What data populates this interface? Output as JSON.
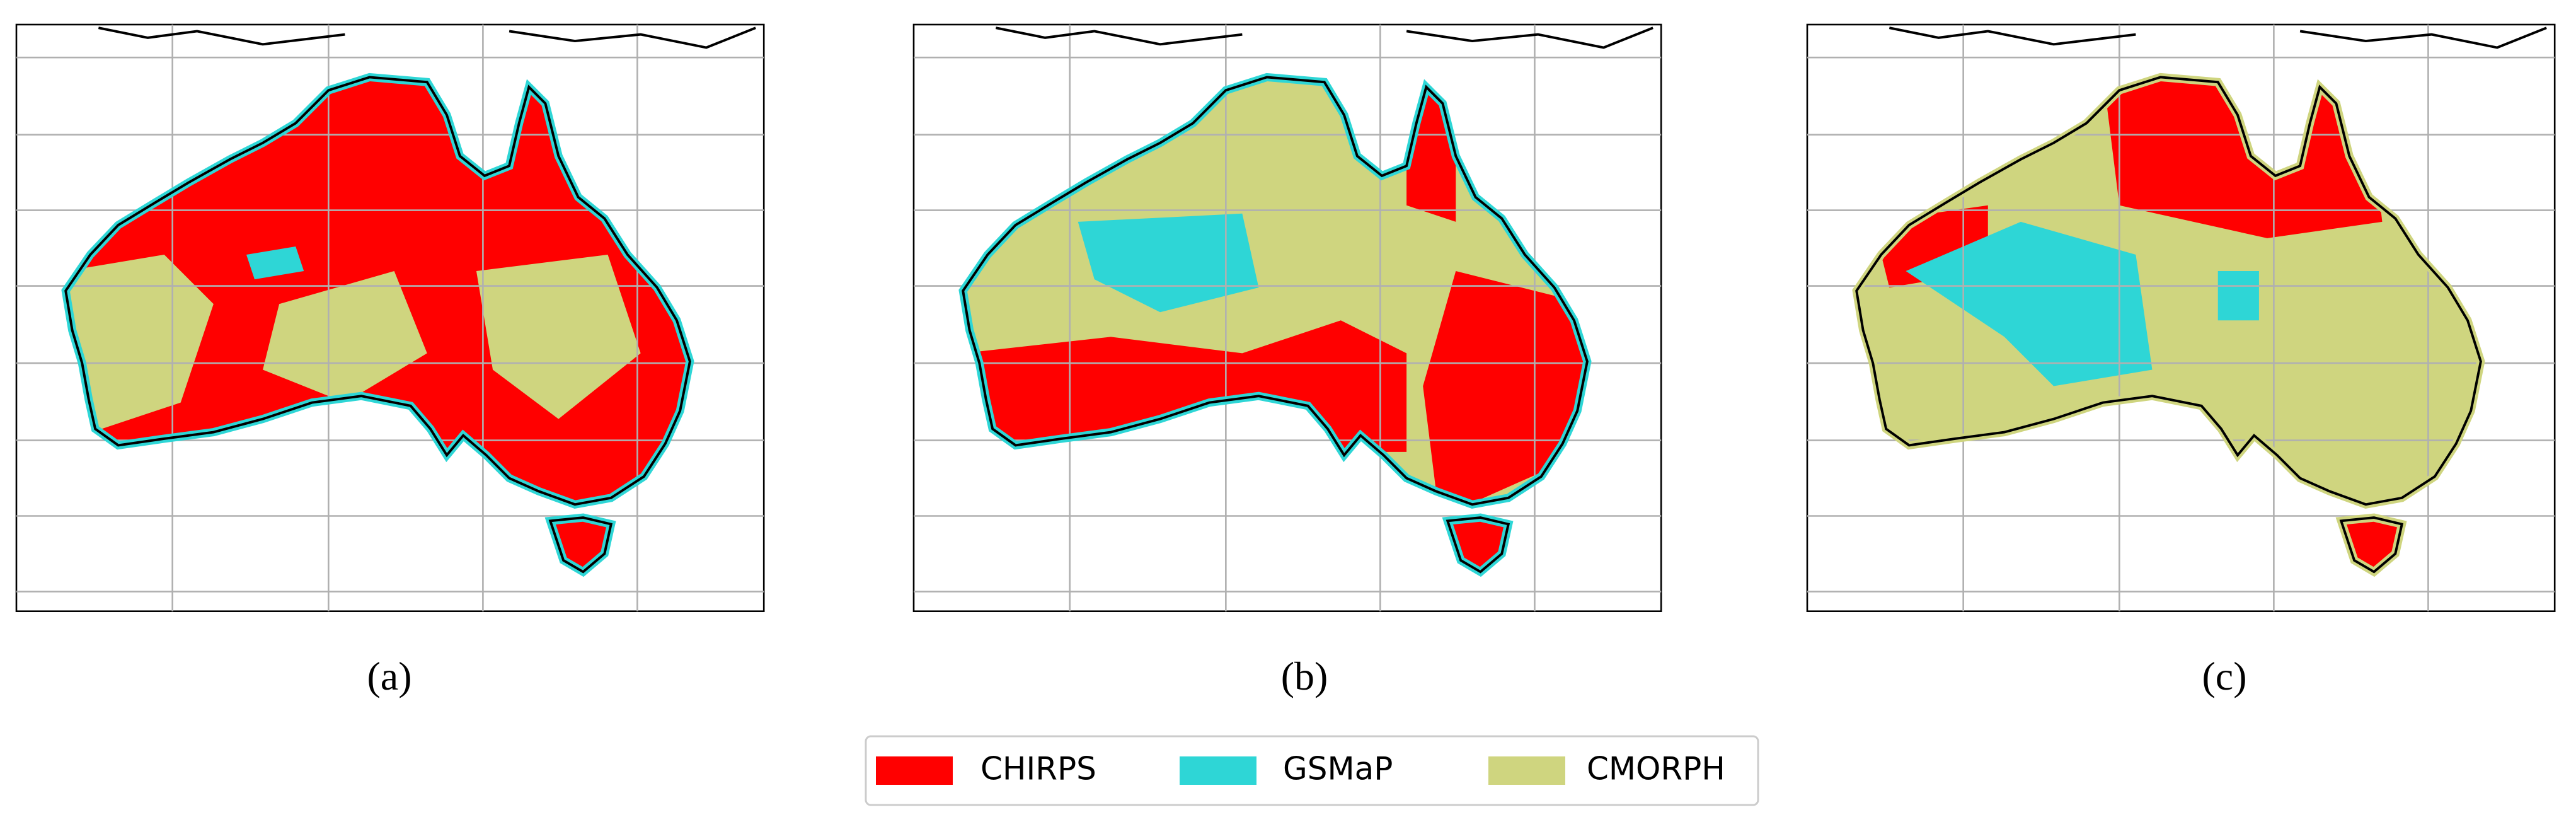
{
  "panels": [
    {
      "label": "(a)"
    },
    {
      "label": "(b)"
    },
    {
      "label": "(c)"
    }
  ],
  "legend": {
    "items": [
      {
        "name": "CHIRPS",
        "color": "#ff0000"
      },
      {
        "name": "GSMaP",
        "color": "#2ed6d6"
      },
      {
        "name": "CMORPH",
        "color": "#cfd57f"
      }
    ]
  }
}
